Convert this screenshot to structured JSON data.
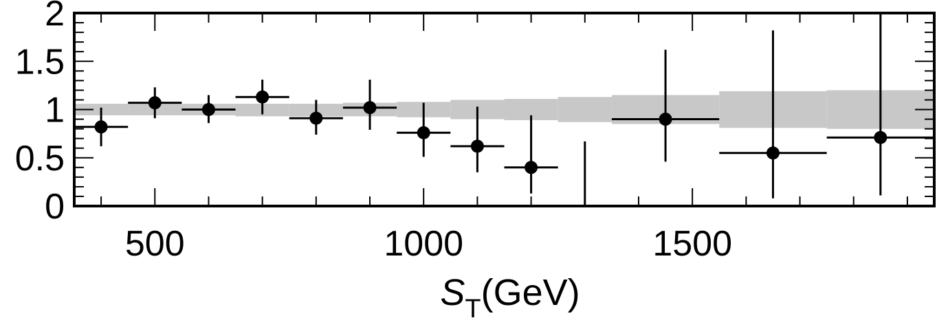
{
  "chart_data": {
    "type": "scatter",
    "title": "",
    "xlabel_main": "S",
    "xlabel_sub": "T",
    "xlabel_unit": "(GeV)",
    "ylabel": "",
    "xlim": [
      350,
      1950
    ],
    "ylim": [
      0,
      2
    ],
    "x_ticks": [
      500,
      1000,
      1500
    ],
    "x_tick_labels": [
      "500",
      "1000",
      "1500"
    ],
    "y_ticks": [
      0,
      0.5,
      1,
      1.5,
      2
    ],
    "y_tick_labels": [
      "0",
      "0.5",
      "1",
      "1.5",
      "2"
    ],
    "points": [
      {
        "x": 400,
        "y": 0.82,
        "x_low": 350,
        "x_high": 450,
        "y_low": 0.62,
        "y_high": 1.02
      },
      {
        "x": 500,
        "y": 1.07,
        "x_low": 450,
        "x_high": 550,
        "y_low": 0.91,
        "y_high": 1.23
      },
      {
        "x": 600,
        "y": 1.0,
        "x_low": 550,
        "x_high": 650,
        "y_low": 0.86,
        "y_high": 1.15
      },
      {
        "x": 700,
        "y": 1.13,
        "x_low": 650,
        "x_high": 750,
        "y_low": 0.95,
        "y_high": 1.31
      },
      {
        "x": 800,
        "y": 0.91,
        "x_low": 750,
        "x_high": 850,
        "y_low": 0.74,
        "y_high": 1.1
      },
      {
        "x": 900,
        "y": 1.02,
        "x_low": 850,
        "x_high": 950,
        "y_low": 0.79,
        "y_high": 1.31
      },
      {
        "x": 1000,
        "y": 0.76,
        "x_low": 950,
        "x_high": 1050,
        "y_low": 0.51,
        "y_high": 1.07
      },
      {
        "x": 1100,
        "y": 0.62,
        "x_low": 1050,
        "x_high": 1150,
        "y_low": 0.35,
        "y_high": 1.03
      },
      {
        "x": 1200,
        "y": 0.4,
        "x_low": 1150,
        "x_high": 1250,
        "y_low": 0.13,
        "y_high": 0.94
      },
      {
        "x": 1450,
        "y": 0.9,
        "x_low": 1350,
        "x_high": 1550,
        "y_low": 0.46,
        "y_high": 1.62
      },
      {
        "x": 1650,
        "y": 0.55,
        "x_low": 1550,
        "x_high": 1750,
        "y_low": 0.08,
        "y_high": 1.82
      },
      {
        "x": 1850,
        "y": 0.71,
        "x_low": 1750,
        "x_high": 1950,
        "y_low": 0.11,
        "y_high": 2.0
      }
    ],
    "upper_limits": [
      {
        "x": 1300,
        "y_low": 0.0,
        "y_high": 0.67
      }
    ],
    "uncertainty_band": [
      {
        "x_low": 350,
        "x_high": 450,
        "y_low": 0.94,
        "y_high": 1.06
      },
      {
        "x_low": 450,
        "x_high": 550,
        "y_low": 0.94,
        "y_high": 1.06
      },
      {
        "x_low": 550,
        "x_high": 650,
        "y_low": 0.94,
        "y_high": 1.06
      },
      {
        "x_low": 650,
        "x_high": 750,
        "y_low": 0.93,
        "y_high": 1.06
      },
      {
        "x_low": 750,
        "x_high": 850,
        "y_low": 0.93,
        "y_high": 1.06
      },
      {
        "x_low": 850,
        "x_high": 950,
        "y_low": 0.93,
        "y_high": 1.07
      },
      {
        "x_low": 950,
        "x_high": 1050,
        "y_low": 0.92,
        "y_high": 1.08
      },
      {
        "x_low": 1050,
        "x_high": 1150,
        "y_low": 0.9,
        "y_high": 1.1
      },
      {
        "x_low": 1150,
        "x_high": 1250,
        "y_low": 0.89,
        "y_high": 1.11
      },
      {
        "x_low": 1250,
        "x_high": 1350,
        "y_low": 0.87,
        "y_high": 1.13
      },
      {
        "x_low": 1350,
        "x_high": 1550,
        "y_low": 0.85,
        "y_high": 1.15
      },
      {
        "x_low": 1550,
        "x_high": 1750,
        "y_low": 0.81,
        "y_high": 1.19
      },
      {
        "x_low": 1750,
        "x_high": 1950,
        "y_low": 0.8,
        "y_high": 1.2
      }
    ],
    "grid": false,
    "colors": {
      "points": "#000000",
      "band": "#c8c8c8",
      "axes": "#000000"
    }
  }
}
